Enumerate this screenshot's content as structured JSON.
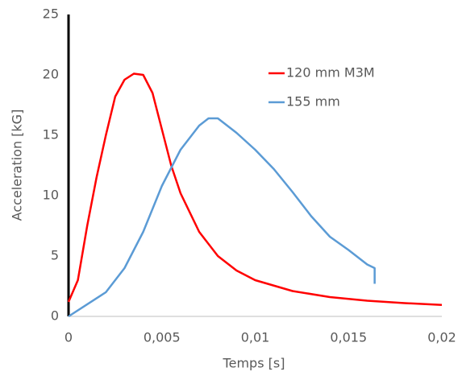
{
  "chart_data": {
    "type": "line",
    "x_label": "Temps [s]",
    "y_label": "Acceleration [kG]",
    "xlim": [
      0,
      0.02
    ],
    "xticks": [
      0,
      {
        "value": 0.005,
        "label": "0,005"
      },
      {
        "value": 0.01,
        "label": "0,01"
      },
      {
        "value": 0.015,
        "label": "0,015"
      },
      {
        "value": 0.02,
        "label": "0,02"
      }
    ],
    "ylim": [
      0,
      25
    ],
    "yticks": [
      0,
      5,
      10,
      15,
      20,
      25
    ],
    "grid": false,
    "legend": "upper right",
    "series": [
      {
        "name": "120 mm M3M",
        "color": "#ff0000",
        "x": [
          0,
          0.0005,
          0.001,
          0.0015,
          0.002,
          0.0025,
          0.003,
          0.0035,
          0.004,
          0.0045,
          0.005,
          0.0055,
          0.006,
          0.007,
          0.008,
          0.009,
          0.01,
          0.012,
          0.014,
          0.016,
          0.018,
          0.02
        ],
        "values": [
          1.2,
          3,
          7.5,
          11.5,
          15,
          18.2,
          19.6,
          20.1,
          20,
          18.5,
          15.5,
          12.5,
          10.2,
          7,
          5,
          3.8,
          3,
          2.1,
          1.6,
          1.3,
          1.1,
          0.95
        ]
      },
      {
        "name": "155 mm",
        "color": "#5b9bd5",
        "x": [
          0,
          0.002,
          0.003,
          0.004,
          0.005,
          0.006,
          0.007,
          0.0075,
          0.008,
          0.009,
          0.01,
          0.011,
          0.012,
          0.013,
          0.014,
          0.015,
          0.016,
          0.0164,
          0.0164
        ],
        "values": [
          0,
          2,
          4,
          7,
          10.8,
          13.8,
          15.8,
          16.4,
          16.4,
          15.2,
          13.8,
          12.2,
          10.3,
          8.3,
          6.6,
          5.5,
          4.3,
          4,
          2.7
        ]
      }
    ]
  }
}
